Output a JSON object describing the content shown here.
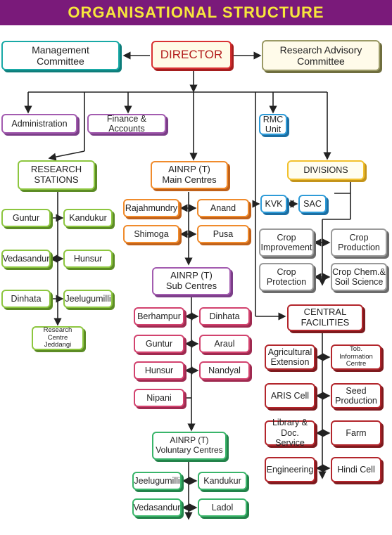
{
  "title": "ORGANISATIONAL STRUCTURE",
  "colors": {
    "title_bg": "#7a1a7a",
    "title_text": "#f7e63c",
    "lines": "#222222"
  },
  "nodes": {
    "management_committee": "Management\nCommittee",
    "director": "DIRECTOR",
    "research_advisory_committee": "Research Advisory\nCommittee",
    "administration": "Administration",
    "finance_accounts": "Finance & Accounts",
    "rmc_unit": "RMC\nUnit",
    "research_stations": "RESEARCH\nSTATIONS",
    "ainrp_main": "AINRP (T)\nMain Centres",
    "divisions": "DIVISIONS",
    "rs_guntur": "Guntur",
    "rs_kandukur": "Kandukur",
    "rs_vedasandur": "Vedasandur",
    "rs_hunsur": "Hunsur",
    "rs_dinhata": "Dinhata",
    "rs_jeelugumilli": "Jeelugumilli",
    "rs_jeddangi": "Research Centre\nJeddangi",
    "mc_rajahmundry": "Rajahmundry",
    "mc_anand": "Anand",
    "mc_shimoga": "Shimoga",
    "mc_pusa": "Pusa",
    "kvk": "KVK",
    "sac": "SAC",
    "div_crop_improvement": "Crop\nImprovement",
    "div_crop_production": "Crop\nProduction",
    "div_crop_protection": "Crop\nProtection",
    "div_crop_chem": "Crop Chem.&\nSoil Science",
    "ainrp_sub": "AINRP (T)\nSub Centres",
    "sc_berhampur": "Berhampur",
    "sc_dinhata": "Dinhata",
    "sc_guntur": "Guntur",
    "sc_araul": "Araul",
    "sc_hunsur": "Hunsur",
    "sc_nandyal": "Nandyal",
    "sc_nipani": "Nipani",
    "central_facilities": "CENTRAL\nFACILITIES",
    "cf_agri_extension": "Agricultural\nExtension",
    "cf_tob_info": "Tob. Information\nCentre",
    "cf_aris": "ARIS Cell",
    "cf_seed": "Seed\nProduction",
    "cf_library": "Library &\nDoc. Service",
    "cf_farm": "Farm",
    "cf_engineering": "Engineering",
    "cf_hindi": "Hindi Cell",
    "ainrp_voluntary": "AINRP (T)\nVoluntary Centres",
    "vc_jeelugumilli": "Jeelugumilli",
    "vc_kandukur": "Kandukur",
    "vc_vedasandur": "Vedasandur",
    "vc_ladol": "Ladol"
  }
}
